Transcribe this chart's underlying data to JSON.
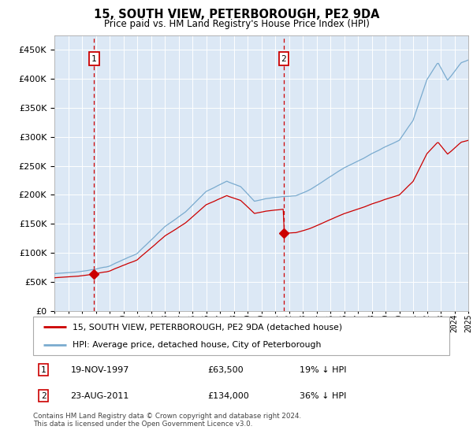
{
  "title": "15, SOUTH VIEW, PETERBOROUGH, PE2 9DA",
  "subtitle": "Price paid vs. HM Land Registry's House Price Index (HPI)",
  "sale1_date": "19-NOV-1997",
  "sale1_price": 63500,
  "sale1_year_float": 1997.878,
  "sale2_date": "23-AUG-2011",
  "sale2_price": 134000,
  "sale2_year_float": 2011.628,
  "sale1_pct": "19% ↓ HPI",
  "sale2_pct": "36% ↓ HPI",
  "legend_line1": "15, SOUTH VIEW, PETERBOROUGH, PE2 9DA (detached house)",
  "legend_line2": "HPI: Average price, detached house, City of Peterborough",
  "footer": "Contains HM Land Registry data © Crown copyright and database right 2024.\nThis data is licensed under the Open Government Licence v3.0.",
  "sale_color": "#cc0000",
  "hpi_color": "#7aabcf",
  "bg_color": "#dce8f5",
  "grid_color": "#ffffff",
  "vline_color": "#cc0000",
  "ylim": [
    0,
    475000
  ],
  "yticks": [
    0,
    50000,
    100000,
    150000,
    200000,
    250000,
    300000,
    350000,
    400000,
    450000
  ],
  "x_start_year": 1995,
  "x_end_year": 2025
}
